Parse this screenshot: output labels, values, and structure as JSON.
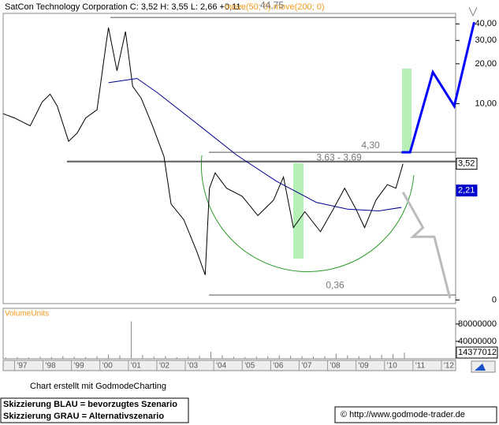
{
  "header": {
    "title": "SatCon Technology Corporation C: 3,52 H: 3,55 L: 2,66 +0,11",
    "indicators": "move(50; 0) move(200; 0)"
  },
  "chart_data": [
    {
      "type": "line",
      "log_scale": true,
      "xlim": [
        1996.6,
        2012.5
      ],
      "ylim": [
        0.31,
        48
      ],
      "xticks": [
        {
          "value": 1997,
          "label": "'97"
        },
        {
          "value": 1998,
          "label": "'98"
        },
        {
          "value": 1999,
          "label": "'99"
        },
        {
          "value": 2000,
          "label": "'00"
        },
        {
          "value": 2001,
          "label": "'01"
        },
        {
          "value": 2002,
          "label": "'02"
        },
        {
          "value": 2003,
          "label": "'03"
        },
        {
          "value": 2004,
          "label": "'04"
        },
        {
          "value": 2005,
          "label": "'05"
        },
        {
          "value": 2006,
          "label": "'06"
        },
        {
          "value": 2007,
          "label": "'07"
        },
        {
          "value": 2008,
          "label": "'08"
        },
        {
          "value": 2009,
          "label": "'09"
        },
        {
          "value": 2010,
          "label": "'10"
        },
        {
          "value": 2011,
          "label": "'11"
        },
        {
          "value": 2012,
          "label": "'12"
        }
      ],
      "yticks": [
        {
          "value": 40,
          "label": "40,00"
        },
        {
          "value": 30,
          "label": "30,00"
        },
        {
          "value": 20,
          "label": "20,00"
        },
        {
          "value": 10,
          "label": "10,00"
        },
        {
          "value": 0.33,
          "label": "0"
        }
      ],
      "series": [
        {
          "color": "#000000",
          "width": 1,
          "x": [
            1996.6,
            1997.0,
            1997.55,
            1997.97,
            1998.25,
            1998.5,
            1998.9,
            1999.2,
            1999.5,
            1999.9,
            2000.2,
            2000.3,
            2000.6,
            2000.9,
            2001.15,
            2001.45,
            2001.85,
            2002.25,
            2002.5,
            2002.95,
            2003.4,
            2003.7,
            2003.85,
            2004.05,
            2004.45,
            2005.0,
            2005.55,
            2006.1,
            2006.45,
            2006.8,
            2007.2,
            2007.75,
            2008.2,
            2008.6,
            2009.0,
            2009.3,
            2009.7,
            2010.1,
            2010.4,
            2010.65
          ],
          "values": [
            8.4,
            7.8,
            6.8,
            10.3,
            11.8,
            9.6,
            5.2,
            6.0,
            7.8,
            9.0,
            26.7,
            37.5,
            17.7,
            35,
            13.5,
            11.0,
            6.8,
            4.0,
            1.75,
            1.33,
            0.77,
            0.51,
            2.3,
            3.0,
            2.3,
            2.0,
            1.43,
            1.87,
            2.8,
            1.16,
            1.53,
            1.08,
            1.6,
            2.3,
            1.6,
            1.16,
            1.87,
            2.45,
            2.3,
            3.52
          ]
        },
        {
          "color": "#00008b",
          "width": 1,
          "x": [
            2000.3,
            2001.3,
            2002.0,
            2003.4,
            2004.8,
            2006.2,
            2007.6,
            2008.7,
            2009.8,
            2010.6
          ],
          "values": [
            14.4,
            15.5,
            12.2,
            7.1,
            4.1,
            2.6,
            1.8,
            1.6,
            1.55,
            1.65
          ]
        },
        {
          "color": "#0000ff",
          "width": 3,
          "x": [
            2010.6,
            2010.9,
            2011.7,
            2012.45,
            2013.15
          ],
          "values": [
            4.3,
            4.3,
            17.3,
            9.6,
            41.2
          ]
        },
        {
          "color": "#bbbbbb",
          "width": 3,
          "x": [
            2010.65,
            2011.35,
            2011.0,
            2011.75,
            2012.3
          ],
          "values": [
            2.15,
            1.16,
            0.99,
            0.99,
            0.34
          ]
        }
      ],
      "levels": [
        {
          "value": 44.75,
          "label": "44,75"
        },
        {
          "value": 4.3,
          "label": "4,30"
        },
        {
          "value": 3.63,
          "value2": 3.69,
          "label": "3,63 - 3,69"
        },
        {
          "value": 0.36,
          "label": "0,36"
        }
      ],
      "markers": [
        {
          "value": 3.52,
          "label": "3,52",
          "color": "#ffffff"
        },
        {
          "value": 2.21,
          "label": "2,21",
          "color": "#0000cc"
        }
      ]
    },
    {
      "type": "bar",
      "title": "VolumeUnits",
      "ylim": [
        0,
        116000000
      ],
      "yticks": [
        80000000,
        40000000
      ],
      "last_value": 14377012,
      "color": "#888888",
      "x": [
        1996.7,
        1997.1,
        1997.5,
        1997.9,
        1998.3,
        1998.7,
        1999.1,
        1999.5,
        1999.9,
        2000.3,
        2000.7,
        2001.1,
        2001.5,
        2001.9,
        2002.3,
        2002.7,
        2003.1,
        2003.5,
        2003.9,
        2004.3,
        2004.7,
        2005.1,
        2005.5,
        2005.9,
        2006.3,
        2006.7,
        2007.1,
        2007.5,
        2007.9,
        2008.3,
        2008.7,
        2009.1,
        2009.5,
        2009.9,
        2010.3,
        2010.7
      ],
      "values": [
        3000000,
        4000000,
        3000000,
        5000000,
        4000000,
        6000000,
        5000000,
        4000000,
        6000000,
        10000000,
        8000000,
        86000000,
        9000000,
        5000000,
        6000000,
        4000000,
        5000000,
        7000000,
        16000000,
        8000000,
        5000000,
        4000000,
        5000000,
        6000000,
        8000000,
        7000000,
        6000000,
        5000000,
        6000000,
        12000000,
        8000000,
        6000000,
        7000000,
        9000000,
        11000000,
        14000000
      ]
    }
  ],
  "footer": {
    "credit": "Chart erstellt mit GodmodeCharting",
    "note_blue": "Skizzierung BLAU = bevorzugtes Szenario",
    "note_grey": "Skizzierung GRAU = Alternativszenario",
    "url": "© http://www.godmode-trader.de"
  }
}
